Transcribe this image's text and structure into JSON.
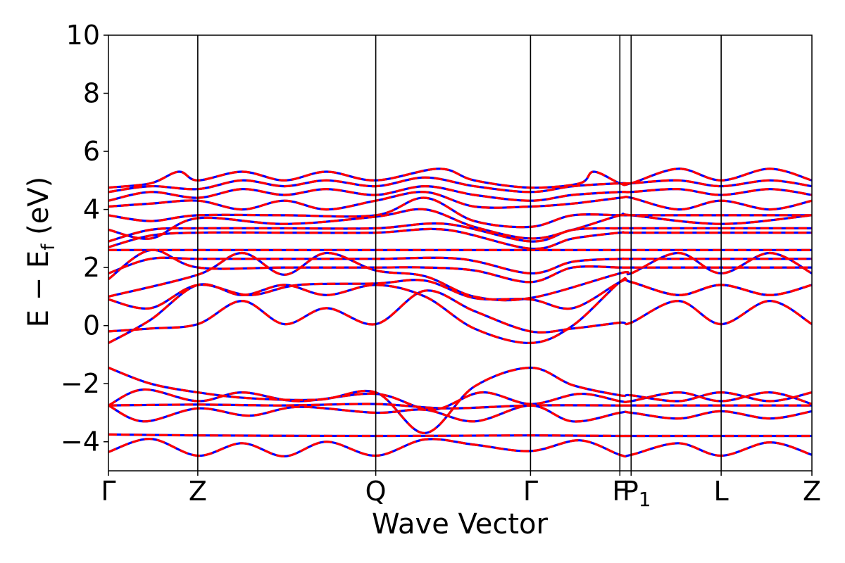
{
  "chart_data": {
    "type": "line",
    "xlabel": "Wave Vector",
    "ylabel": {
      "main": "E − E",
      "sub": "f",
      "unit": " (eV)"
    },
    "ylim": [
      -5,
      10
    ],
    "xlim": [
      0,
      1
    ],
    "yticks": [
      -4,
      -2,
      0,
      2,
      4,
      6,
      8,
      10
    ],
    "ytick_labels": [
      "−4",
      "−2",
      "0",
      "2",
      "4",
      "6",
      "8",
      "10"
    ],
    "kpoints": [
      {
        "label": "Γ",
        "x": 0.0
      },
      {
        "label": "Z",
        "x": 0.127
      },
      {
        "label": "Q",
        "x": 0.38
      },
      {
        "label": "Γ",
        "x": 0.6
      },
      {
        "label": "F",
        "x": 0.727
      },
      {
        "label": "P",
        "sub": "1",
        "x": 0.743
      },
      {
        "label": "L",
        "x": 0.871
      },
      {
        "label": "Z",
        "x": 1.0
      }
    ],
    "series": [
      {
        "color": "#0000ff",
        "style": "solid"
      },
      {
        "color": "#ff0000",
        "style": "dashed"
      }
    ],
    "bands": [
      [
        [
          0,
          -4.35
        ],
        [
          0.06,
          -3.9
        ],
        [
          0.127,
          -4.48
        ],
        [
          0.19,
          -4.05
        ],
        [
          0.25,
          -4.5
        ],
        [
          0.31,
          -4.0
        ],
        [
          0.38,
          -4.48
        ],
        [
          0.45,
          -3.92
        ],
        [
          0.52,
          -4.1
        ],
        [
          0.6,
          -4.32
        ],
        [
          0.67,
          -3.95
        ],
        [
          0.727,
          -4.45
        ],
        [
          0.743,
          -4.45
        ],
        [
          0.81,
          -4.05
        ],
        [
          0.871,
          -4.48
        ],
        [
          0.94,
          -4.02
        ],
        [
          1.0,
          -4.45
        ]
      ],
      [
        [
          0,
          -3.75
        ],
        [
          0.127,
          -3.78
        ],
        [
          0.38,
          -3.8
        ],
        [
          0.6,
          -3.78
        ],
        [
          0.727,
          -3.8
        ],
        [
          0.743,
          -3.8
        ],
        [
          0.871,
          -3.8
        ],
        [
          1.0,
          -3.8
        ]
      ],
      [
        [
          0,
          -2.75
        ],
        [
          0.05,
          -3.3
        ],
        [
          0.127,
          -2.85
        ],
        [
          0.2,
          -3.1
        ],
        [
          0.27,
          -2.8
        ],
        [
          0.38,
          -3.0
        ],
        [
          0.45,
          -2.9
        ],
        [
          0.52,
          -3.3
        ],
        [
          0.6,
          -2.75
        ],
        [
          0.66,
          -3.3
        ],
        [
          0.727,
          -3.0
        ],
        [
          0.743,
          -3.0
        ],
        [
          0.81,
          -3.2
        ],
        [
          0.871,
          -2.95
        ],
        [
          0.94,
          -3.2
        ],
        [
          1.0,
          -2.95
        ]
      ],
      [
        [
          0,
          -2.75
        ],
        [
          0.127,
          -2.72
        ],
        [
          0.25,
          -2.75
        ],
        [
          0.38,
          -2.7
        ],
        [
          0.48,
          -2.85
        ],
        [
          0.6,
          -2.75
        ],
        [
          0.727,
          -2.75
        ],
        [
          0.743,
          -2.75
        ],
        [
          0.871,
          -2.75
        ],
        [
          1.0,
          -2.75
        ]
      ],
      [
        [
          0,
          -2.75
        ],
        [
          0.05,
          -2.2
        ],
        [
          0.127,
          -2.6
        ],
        [
          0.19,
          -2.3
        ],
        [
          0.27,
          -2.6
        ],
        [
          0.38,
          -2.35
        ],
        [
          0.46,
          -2.9
        ],
        [
          0.53,
          -2.3
        ],
        [
          0.6,
          -2.7
        ],
        [
          0.67,
          -2.35
        ],
        [
          0.727,
          -2.6
        ],
        [
          0.743,
          -2.6
        ],
        [
          0.81,
          -2.3
        ],
        [
          0.871,
          -2.6
        ],
        [
          0.94,
          -2.3
        ],
        [
          1.0,
          -2.7
        ]
      ],
      [
        [
          0,
          -1.45
        ],
        [
          0.06,
          -2.0
        ],
        [
          0.127,
          -2.3
        ],
        [
          0.2,
          -2.5
        ],
        [
          0.3,
          -2.55
        ],
        [
          0.38,
          -2.3
        ],
        [
          0.45,
          -3.7
        ],
        [
          0.52,
          -2.1
        ],
        [
          0.6,
          -1.45
        ],
        [
          0.66,
          -2.05
        ],
        [
          0.727,
          -2.4
        ],
        [
          0.743,
          -2.4
        ],
        [
          0.81,
          -2.6
        ],
        [
          0.871,
          -2.3
        ],
        [
          0.94,
          -2.6
        ],
        [
          1.0,
          -2.3
        ]
      ],
      [
        [
          0,
          -0.6
        ],
        [
          0.06,
          0.2
        ],
        [
          0.127,
          1.4
        ],
        [
          0.19,
          1.05
        ],
        [
          0.25,
          1.4
        ],
        [
          0.31,
          1.05
        ],
        [
          0.38,
          1.4
        ],
        [
          0.45,
          1.0
        ],
        [
          0.52,
          -0.1
        ],
        [
          0.6,
          -0.6
        ],
        [
          0.66,
          0.0
        ],
        [
          0.727,
          1.5
        ],
        [
          0.743,
          1.5
        ],
        [
          0.81,
          1.05
        ],
        [
          0.871,
          1.4
        ],
        [
          0.94,
          1.05
        ],
        [
          1.0,
          1.4
        ]
      ],
      [
        [
          0,
          -0.2
        ],
        [
          0.06,
          -0.1
        ],
        [
          0.127,
          0.05
        ],
        [
          0.19,
          0.85
        ],
        [
          0.25,
          0.05
        ],
        [
          0.31,
          0.6
        ],
        [
          0.38,
          0.05
        ],
        [
          0.45,
          1.2
        ],
        [
          0.52,
          0.5
        ],
        [
          0.6,
          -0.2
        ],
        [
          0.66,
          -0.1
        ],
        [
          0.727,
          0.1
        ],
        [
          0.743,
          0.1
        ],
        [
          0.81,
          0.85
        ],
        [
          0.871,
          0.05
        ],
        [
          0.94,
          0.85
        ],
        [
          1.0,
          0.05
        ]
      ],
      [
        [
          0,
          0.9
        ],
        [
          0.06,
          0.6
        ],
        [
          0.127,
          1.4
        ],
        [
          0.2,
          1.05
        ],
        [
          0.27,
          1.4
        ],
        [
          0.38,
          1.45
        ],
        [
          0.45,
          1.55
        ],
        [
          0.52,
          0.95
        ],
        [
          0.6,
          0.9
        ],
        [
          0.66,
          0.6
        ],
        [
          0.727,
          1.5
        ],
        [
          0.743,
          1.5
        ],
        [
          0.81,
          1.05
        ],
        [
          0.871,
          1.4
        ],
        [
          0.94,
          1.05
        ],
        [
          1.0,
          1.4
        ]
      ],
      [
        [
          0,
          1.0
        ],
        [
          0.127,
          1.75
        ],
        [
          0.19,
          2.5
        ],
        [
          0.25,
          1.75
        ],
        [
          0.31,
          2.5
        ],
        [
          0.38,
          1.9
        ],
        [
          0.45,
          1.7
        ],
        [
          0.52,
          1.0
        ],
        [
          0.6,
          0.95
        ],
        [
          0.727,
          1.8
        ],
        [
          0.743,
          1.8
        ],
        [
          0.81,
          2.5
        ],
        [
          0.871,
          1.8
        ],
        [
          0.94,
          2.5
        ],
        [
          1.0,
          1.8
        ]
      ],
      [
        [
          0,
          1.6
        ],
        [
          0.06,
          2.6
        ],
        [
          0.127,
          2.0
        ],
        [
          0.25,
          2.0
        ],
        [
          0.38,
          2.0
        ],
        [
          0.45,
          2.0
        ],
        [
          0.52,
          1.9
        ],
        [
          0.6,
          1.5
        ],
        [
          0.66,
          2.0
        ],
        [
          0.727,
          2.0
        ],
        [
          0.743,
          2.0
        ],
        [
          0.871,
          2.0
        ],
        [
          1.0,
          2.0
        ]
      ],
      [
        [
          0,
          1.8
        ],
        [
          0.06,
          2.3
        ],
        [
          0.127,
          2.3
        ],
        [
          0.25,
          2.3
        ],
        [
          0.38,
          2.3
        ],
        [
          0.5,
          2.3
        ],
        [
          0.6,
          1.8
        ],
        [
          0.66,
          2.2
        ],
        [
          0.727,
          2.3
        ],
        [
          0.743,
          2.3
        ],
        [
          0.871,
          2.3
        ],
        [
          1.0,
          2.3
        ]
      ],
      [
        [
          0,
          2.6
        ],
        [
          0.127,
          2.6
        ],
        [
          0.25,
          2.6
        ],
        [
          0.38,
          2.6
        ],
        [
          0.5,
          2.6
        ],
        [
          0.6,
          2.6
        ],
        [
          0.727,
          2.6
        ],
        [
          0.743,
          2.6
        ],
        [
          0.871,
          2.6
        ],
        [
          1.0,
          2.6
        ]
      ],
      [
        [
          0,
          2.7
        ],
        [
          0.06,
          3.1
        ],
        [
          0.127,
          3.2
        ],
        [
          0.25,
          3.2
        ],
        [
          0.38,
          3.2
        ],
        [
          0.48,
          3.3
        ],
        [
          0.6,
          2.65
        ],
        [
          0.66,
          3.0
        ],
        [
          0.727,
          3.2
        ],
        [
          0.743,
          3.2
        ],
        [
          0.871,
          3.2
        ],
        [
          1.0,
          3.2
        ]
      ],
      [
        [
          0,
          2.9
        ],
        [
          0.06,
          3.3
        ],
        [
          0.127,
          3.35
        ],
        [
          0.25,
          3.35
        ],
        [
          0.38,
          3.35
        ],
        [
          0.48,
          3.5
        ],
        [
          0.6,
          2.9
        ],
        [
          0.66,
          3.3
        ],
        [
          0.727,
          3.35
        ],
        [
          0.743,
          3.35
        ],
        [
          0.871,
          3.35
        ],
        [
          1.0,
          3.35
        ]
      ],
      [
        [
          0,
          3.3
        ],
        [
          0.06,
          3.0
        ],
        [
          0.127,
          3.7
        ],
        [
          0.25,
          3.5
        ],
        [
          0.38,
          3.75
        ],
        [
          0.45,
          4.0
        ],
        [
          0.52,
          3.4
        ],
        [
          0.6,
          3.0
        ],
        [
          0.66,
          3.3
        ],
        [
          0.727,
          3.8
        ],
        [
          0.743,
          3.8
        ],
        [
          0.871,
          3.5
        ],
        [
          1.0,
          3.8
        ]
      ],
      [
        [
          0,
          3.8
        ],
        [
          0.06,
          3.6
        ],
        [
          0.127,
          3.8
        ],
        [
          0.25,
          3.8
        ],
        [
          0.38,
          3.8
        ],
        [
          0.45,
          4.4
        ],
        [
          0.52,
          3.6
        ],
        [
          0.6,
          3.4
        ],
        [
          0.66,
          3.8
        ],
        [
          0.727,
          3.8
        ],
        [
          0.743,
          3.8
        ],
        [
          0.871,
          3.8
        ],
        [
          1.0,
          3.8
        ]
      ],
      [
        [
          0,
          4.1
        ],
        [
          0.06,
          4.2
        ],
        [
          0.127,
          4.3
        ],
        [
          0.19,
          4.0
        ],
        [
          0.25,
          4.3
        ],
        [
          0.31,
          4.0
        ],
        [
          0.38,
          4.3
        ],
        [
          0.45,
          4.6
        ],
        [
          0.52,
          4.1
        ],
        [
          0.6,
          4.1
        ],
        [
          0.66,
          4.2
        ],
        [
          0.727,
          4.4
        ],
        [
          0.743,
          4.4
        ],
        [
          0.81,
          4.0
        ],
        [
          0.871,
          4.3
        ],
        [
          0.94,
          4.0
        ],
        [
          1.0,
          4.3
        ]
      ],
      [
        [
          0,
          4.3
        ],
        [
          0.06,
          4.6
        ],
        [
          0.127,
          4.4
        ],
        [
          0.19,
          4.7
        ],
        [
          0.25,
          4.5
        ],
        [
          0.31,
          4.7
        ],
        [
          0.38,
          4.5
        ],
        [
          0.45,
          4.8
        ],
        [
          0.52,
          4.5
        ],
        [
          0.6,
          4.3
        ],
        [
          0.66,
          4.5
        ],
        [
          0.727,
          4.6
        ],
        [
          0.743,
          4.6
        ],
        [
          0.81,
          4.7
        ],
        [
          0.871,
          4.5
        ],
        [
          0.94,
          4.7
        ],
        [
          1.0,
          4.5
        ]
      ],
      [
        [
          0,
          4.6
        ],
        [
          0.06,
          4.8
        ],
        [
          0.127,
          4.7
        ],
        [
          0.19,
          5.0
        ],
        [
          0.25,
          4.8
        ],
        [
          0.31,
          5.0
        ],
        [
          0.38,
          4.8
        ],
        [
          0.45,
          5.1
        ],
        [
          0.52,
          4.8
        ],
        [
          0.6,
          4.6
        ],
        [
          0.66,
          4.8
        ],
        [
          0.727,
          4.9
        ],
        [
          0.743,
          4.9
        ],
        [
          0.81,
          5.0
        ],
        [
          0.871,
          4.8
        ],
        [
          0.94,
          5.0
        ],
        [
          1.0,
          4.8
        ]
      ],
      [
        [
          0,
          4.75
        ],
        [
          0.06,
          4.9
        ],
        [
          0.1,
          5.3
        ],
        [
          0.127,
          5.0
        ],
        [
          0.19,
          5.3
        ],
        [
          0.25,
          5.0
        ],
        [
          0.31,
          5.3
        ],
        [
          0.38,
          5.0
        ],
        [
          0.47,
          5.4
        ],
        [
          0.52,
          5.0
        ],
        [
          0.6,
          4.75
        ],
        [
          0.67,
          4.9
        ],
        [
          0.69,
          5.3
        ],
        [
          0.727,
          4.9
        ],
        [
          0.743,
          4.9
        ],
        [
          0.81,
          5.4
        ],
        [
          0.871,
          5.0
        ],
        [
          0.94,
          5.4
        ],
        [
          1.0,
          5.0
        ]
      ]
    ]
  }
}
